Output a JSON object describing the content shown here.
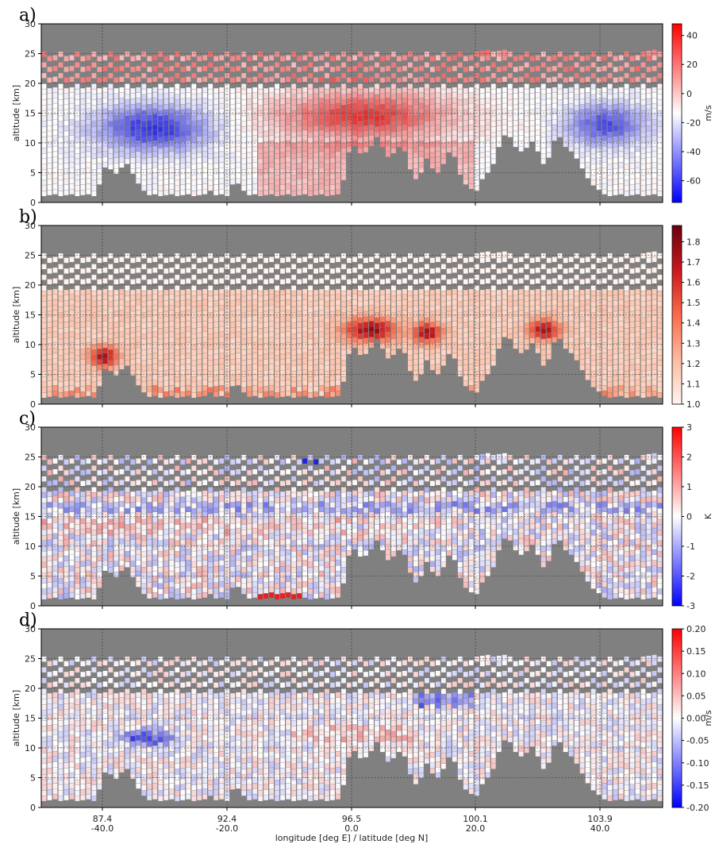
{
  "figure": {
    "xlabel": "longitude [deg E] / latitude [deg N]"
  },
  "chart_data": [
    {
      "type": "heatmap",
      "panel_label": "a)",
      "ylabel": "altitude [km]",
      "ylim": [
        0,
        30
      ],
      "yticks": [
        0,
        5,
        10,
        15,
        20,
        25,
        30
      ],
      "x_ticks_lon": [
        "87.4",
        "92.4",
        "96.5",
        "100.1",
        "103.9"
      ],
      "x_ticks_lat": [
        "-40.0",
        "-20.0",
        "0.0",
        "20.0",
        "40.0"
      ],
      "colorbar": {
        "unit": "m/s",
        "vmin": -75,
        "vmax": 48,
        "ticks": [
          40,
          20,
          0,
          -20,
          -40,
          -60
        ],
        "cmap": "bwr"
      },
      "grid": true,
      "background": "#808080"
    },
    {
      "type": "heatmap",
      "panel_label": "b)",
      "ylabel": "altitude [km]",
      "ylim": [
        0,
        30
      ],
      "yticks": [
        0,
        5,
        10,
        15,
        20,
        25,
        30
      ],
      "x_ticks_lon": [
        "87.4",
        "92.4",
        "96.5",
        "100.1",
        "103.9"
      ],
      "x_ticks_lat": [
        "-40.0",
        "-20.0",
        "0.0",
        "20.0",
        "40.0"
      ],
      "colorbar": {
        "unit": "",
        "vmin": 1.0,
        "vmax": 1.88,
        "ticks": [
          "1.8",
          "1.7",
          "1.6",
          "1.5",
          "1.4",
          "1.3",
          "1.2",
          "1.1",
          "1.0"
        ],
        "cmap": "Reds"
      },
      "grid": true,
      "background": "#808080"
    },
    {
      "type": "heatmap",
      "panel_label": "c)",
      "ylabel": "altitude [km]",
      "ylim": [
        0,
        30
      ],
      "yticks": [
        0,
        5,
        10,
        15,
        20,
        25,
        30
      ],
      "x_ticks_lon": [
        "87.4",
        "92.4",
        "96.5",
        "100.1",
        "103.9"
      ],
      "x_ticks_lat": [
        "-40.0",
        "-20.0",
        "0.0",
        "20.0",
        "40.0"
      ],
      "colorbar": {
        "unit": "K",
        "vmin": -3,
        "vmax": 3,
        "ticks": [
          3,
          2,
          1,
          0,
          -1,
          -2,
          -3
        ],
        "cmap": "bwr"
      },
      "grid": true,
      "background": "#808080"
    },
    {
      "type": "heatmap",
      "panel_label": "d)",
      "ylabel": "altitude [km]",
      "ylim": [
        0,
        30
      ],
      "yticks": [
        0,
        5,
        10,
        15,
        20,
        25,
        30
      ],
      "x_ticks_lon": [
        "87.4",
        "92.4",
        "96.5",
        "100.1",
        "103.9"
      ],
      "x_ticks_lat": [
        "-40.0",
        "-20.0",
        "0.0",
        "20.0",
        "40.0"
      ],
      "colorbar": {
        "unit": "m/s",
        "vmin": -0.2,
        "vmax": 0.2,
        "ticks": [
          "0.20",
          "0.15",
          "0.10",
          "0.05",
          "0.00",
          "-0.05",
          "-0.10",
          "-0.15",
          "-0.20"
        ],
        "cmap": "bwr"
      },
      "grid": true,
      "background": "#808080"
    }
  ]
}
